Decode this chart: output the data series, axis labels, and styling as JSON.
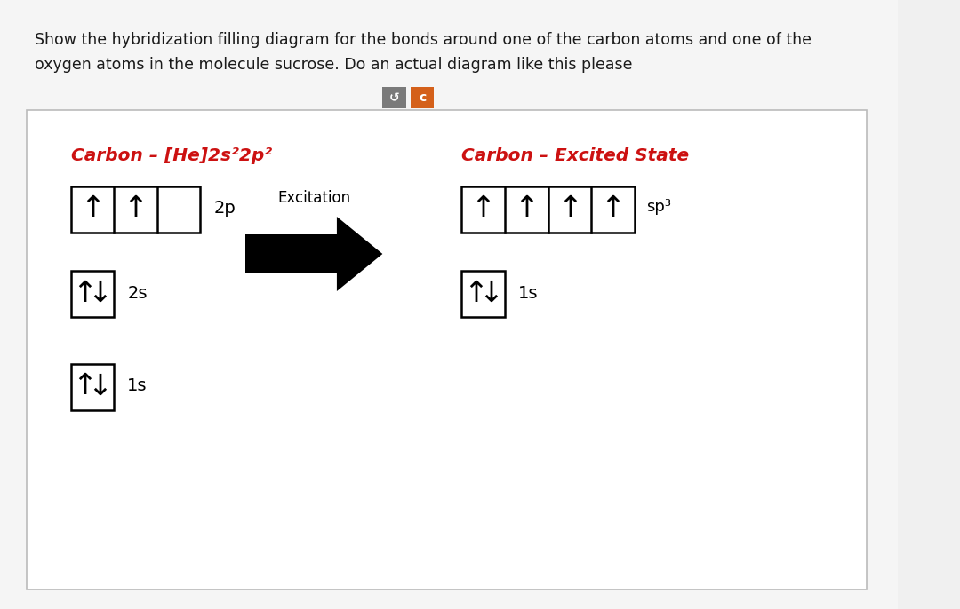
{
  "title_line1": "Show the hybridization filling diagram for the bonds around one of the carbon atoms and one of the",
  "title_line2": "oxygen atoms in the molecule sucrose. Do an actual diagram like this please",
  "title_fontsize": 12.5,
  "title_color": "#1a1a1a",
  "left_title": "Carbon – [He]2s²2p²",
  "right_title": "Carbon – Excited State",
  "section_title_color": "#cc1111",
  "section_title_fontsize": 14.5,
  "box_color": "#000000",
  "bg_color": "#f0f0f0",
  "panel_bg": "#ffffff",
  "panel_edge": "#bbbbbb",
  "arrow_up": "↑",
  "arrow_down": "↓",
  "arrow_fontsize": 24,
  "label_fontsize": 14,
  "excitation_label": "Excitation",
  "excitation_fontsize": 12,
  "sp3_label": "sp³",
  "sp3_fontsize": 13,
  "btn1_label": "↺",
  "btn1_bg": "#7a7a7a",
  "btn1_fg": "#ffffff",
  "btn2_label": "c",
  "btn2_bg": "#d4601a",
  "btn2_fg": "#ffffff",
  "btn_fontsize": 10
}
